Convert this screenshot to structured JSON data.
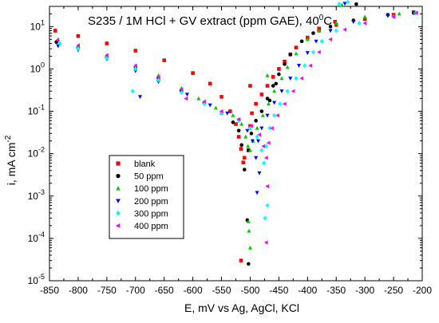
{
  "chart_data": {
    "type": "scatter",
    "title": "S235 / 1M HCl + GV extract (ppm GAE), 40",
    "title_sup": "0",
    "title_tail": "C",
    "xlabel": "E, mV vs Ag, AgCl, KCl",
    "ylabel_main": "i, mA cm",
    "ylabel_sup": "-2",
    "x_scale": "linear",
    "y_scale": "log",
    "xlim": [
      -850,
      -200
    ],
    "ylim": [
      1e-05,
      30
    ],
    "x_ticks": [
      -850,
      -800,
      -750,
      -700,
      -650,
      -600,
      -550,
      -500,
      -450,
      -400,
      -350,
      -300,
      -250,
      -200
    ],
    "x_tick_labels": [
      "-850",
      "-800",
      "-750",
      "-700",
      "-650",
      "-600",
      "-550",
      "-500",
      "-450",
      "-400",
      "-350",
      "-300",
      "-250",
      "-200"
    ],
    "y_ticks": [
      {
        "value": 10,
        "base": "10",
        "exp": "1"
      },
      {
        "value": 1,
        "base": "10",
        "exp": "0"
      },
      {
        "value": 0.1,
        "base": "10",
        "exp": "-1"
      },
      {
        "value": 0.01,
        "base": "10",
        "exp": "-2"
      },
      {
        "value": 0.001,
        "base": "10",
        "exp": "-3"
      },
      {
        "value": 0.0001,
        "base": "10",
        "exp": "-4"
      },
      {
        "value": 1e-05,
        "base": "10",
        "exp": "-5"
      }
    ],
    "grid": false,
    "legend_position": "lower-left",
    "series": [
      {
        "name": "blank",
        "color": "#ff0000",
        "marker": "square",
        "points": [
          [
            -840,
            8
          ],
          [
            -800,
            6
          ],
          [
            -750,
            4
          ],
          [
            -700,
            2.7
          ],
          [
            -650,
            1.6
          ],
          [
            -600,
            0.8
          ],
          [
            -570,
            0.45
          ],
          [
            -550,
            0.22
          ],
          [
            -535,
            0.1
          ],
          [
            -525,
            0.05
          ],
          [
            -520,
            0.025
          ],
          [
            -516,
            0.013
          ],
          [
            -512,
            0.0062
          ],
          [
            -510,
            0.008
          ],
          [
            -516,
            3e-05
          ],
          [
            -503,
            0.012
          ],
          [
            -500,
            0.045
          ],
          [
            -497,
            0.09
          ],
          [
            -490,
            0.15
          ],
          [
            -480,
            0.25
          ],
          [
            -470,
            0.4
          ],
          [
            -460,
            0.65
          ],
          [
            -450,
            1
          ],
          [
            -440,
            1.5
          ],
          [
            -430,
            2.2
          ],
          [
            -420,
            3.2
          ],
          [
            -400,
            5.5
          ],
          [
            -380,
            8
          ],
          [
            -350,
            11
          ],
          [
            -300,
            15
          ],
          [
            -250,
            19
          ],
          [
            -215,
            22
          ],
          [
            -500,
            0.4
          ],
          [
            -380,
            9
          ],
          [
            -352,
            13
          ]
        ]
      },
      {
        "name": "50 ppm",
        "color": "#000000",
        "marker": "circle",
        "points": [
          [
            -838,
            4.3
          ],
          [
            -800,
            3.2
          ],
          [
            -750,
            1.9
          ],
          [
            -700,
            1.1
          ],
          [
            -660,
            0.6
          ],
          [
            -620,
            0.3
          ],
          [
            -580,
            0.16
          ],
          [
            -550,
            0.09
          ],
          [
            -530,
            0.055
          ],
          [
            -520,
            0.035
          ],
          [
            -515,
            0.016
          ],
          [
            -510,
            0.0042
          ],
          [
            -503,
            0.012
          ],
          [
            -498,
            0.03
          ],
          [
            -490,
            0.06
          ],
          [
            -480,
            0.1
          ],
          [
            -470,
            0.2
          ],
          [
            -460,
            0.4
          ],
          [
            -450,
            0.75
          ],
          [
            -440,
            1.3
          ],
          [
            -430,
            2.2
          ],
          [
            -410,
            4.5
          ],
          [
            -390,
            7
          ],
          [
            -360,
            10
          ],
          [
            -320,
            14
          ],
          [
            -260,
            19
          ],
          [
            -215,
            21
          ],
          [
            -505,
            0.00027
          ],
          [
            -503,
            2.5e-05
          ],
          [
            -466,
            0.18
          ],
          [
            -455,
            0.45
          ],
          [
            -315,
            34
          ]
        ]
      },
      {
        "name": "100 ppm",
        "color": "#00cc00",
        "marker": "triangle-up",
        "points": [
          [
            -835,
            5
          ],
          [
            -800,
            3.5
          ],
          [
            -750,
            2.1
          ],
          [
            -700,
            1.2
          ],
          [
            -660,
            0.7
          ],
          [
            -620,
            0.35
          ],
          [
            -590,
            0.2
          ],
          [
            -560,
            0.12
          ],
          [
            -530,
            0.08
          ],
          [
            -515,
            0.05
          ],
          [
            -508,
            0.025
          ],
          [
            -504,
            0.015
          ],
          [
            -500,
            0.012
          ],
          [
            -495,
            0.02
          ],
          [
            -488,
            0.04
          ],
          [
            -478,
            0.08
          ],
          [
            -468,
            0.15
          ],
          [
            -458,
            0.3
          ],
          [
            -445,
            0.6
          ],
          [
            -435,
            1.1
          ],
          [
            -420,
            2.3
          ],
          [
            -400,
            5
          ],
          [
            -380,
            8
          ],
          [
            -350,
            12
          ],
          [
            -300,
            17
          ],
          [
            -240,
            20
          ],
          [
            -213,
            22
          ],
          [
            -502,
            0.00015
          ],
          [
            -500,
            6e-05
          ],
          [
            -503,
            0.00025
          ],
          [
            -470,
            0.7
          ],
          [
            -340,
            32
          ]
        ]
      },
      {
        "name": "200 ppm",
        "color": "#0000ff",
        "marker": "triangle-down",
        "points": [
          [
            -835,
            3.5
          ],
          [
            -800,
            2.8
          ],
          [
            -750,
            1.7
          ],
          [
            -700,
            0.9
          ],
          [
            -660,
            0.5
          ],
          [
            -610,
            0.25
          ],
          [
            -570,
            0.14
          ],
          [
            -540,
            0.09
          ],
          [
            -520,
            0.06
          ],
          [
            -505,
            0.035
          ],
          [
            -496,
            0.02
          ],
          [
            -490,
            0.008
          ],
          [
            -486,
            0.02
          ],
          [
            -480,
            0.04
          ],
          [
            -470,
            0.08
          ],
          [
            -458,
            0.16
          ],
          [
            -445,
            0.3
          ],
          [
            -430,
            0.6
          ],
          [
            -415,
            1.2
          ],
          [
            -400,
            2.4
          ],
          [
            -385,
            4.5
          ],
          [
            -360,
            8
          ],
          [
            -320,
            13
          ],
          [
            -260,
            18
          ],
          [
            -212,
            21
          ],
          [
            -488,
            0.0012
          ],
          [
            -484,
            0.0035
          ],
          [
            -692,
            0.22
          ],
          [
            -335,
            35
          ]
        ]
      },
      {
        "name": "300 ppm",
        "color": "#00ffff",
        "marker": "diamond",
        "points": [
          [
            -832,
            4
          ],
          [
            -800,
            3
          ],
          [
            -750,
            1.8
          ],
          [
            -700,
            1
          ],
          [
            -660,
            0.55
          ],
          [
            -620,
            0.28
          ],
          [
            -580,
            0.15
          ],
          [
            -550,
            0.09
          ],
          [
            -520,
            0.06
          ],
          [
            -500,
            0.04
          ],
          [
            -488,
            0.025
          ],
          [
            -480,
            0.012
          ],
          [
            -476,
            0.006
          ],
          [
            -472,
            0.015
          ],
          [
            -466,
            0.04
          ],
          [
            -458,
            0.08
          ],
          [
            -448,
            0.15
          ],
          [
            -435,
            0.3
          ],
          [
            -420,
            0.6
          ],
          [
            -405,
            1.2
          ],
          [
            -390,
            2.5
          ],
          [
            -375,
            4.5
          ],
          [
            -350,
            8
          ],
          [
            -310,
            12
          ],
          [
            -250,
            17
          ],
          [
            -211,
            21
          ],
          [
            -470,
            0.0006
          ],
          [
            -474,
            0.0003
          ],
          [
            -705,
            0.3
          ],
          [
            -330,
            38
          ],
          [
            -345,
            34
          ]
        ]
      },
      {
        "name": "400 ppm",
        "color": "#ff00ff",
        "marker": "triangle-left",
        "points": [
          [
            -836,
            4.8
          ],
          [
            -800,
            3.6
          ],
          [
            -750,
            2.1
          ],
          [
            -700,
            1.2
          ],
          [
            -660,
            0.65
          ],
          [
            -620,
            0.33
          ],
          [
            -580,
            0.17
          ],
          [
            -550,
            0.1
          ],
          [
            -520,
            0.065
          ],
          [
            -498,
            0.045
          ],
          [
            -484,
            0.028
          ],
          [
            -477,
            0.015
          ],
          [
            -472,
            0.008
          ],
          [
            -468,
            0.018
          ],
          [
            -462,
            0.04
          ],
          [
            -452,
            0.08
          ],
          [
            -440,
            0.15
          ],
          [
            -425,
            0.3
          ],
          [
            -410,
            0.6
          ],
          [
            -395,
            1.2
          ],
          [
            -380,
            2.5
          ],
          [
            -360,
            5
          ],
          [
            -335,
            8.5
          ],
          [
            -300,
            12
          ],
          [
            -250,
            17
          ],
          [
            -210,
            21
          ],
          [
            -470,
            0.0017
          ],
          [
            -472,
            8e-05
          ],
          [
            -612,
            0.2
          ]
        ]
      }
    ]
  }
}
